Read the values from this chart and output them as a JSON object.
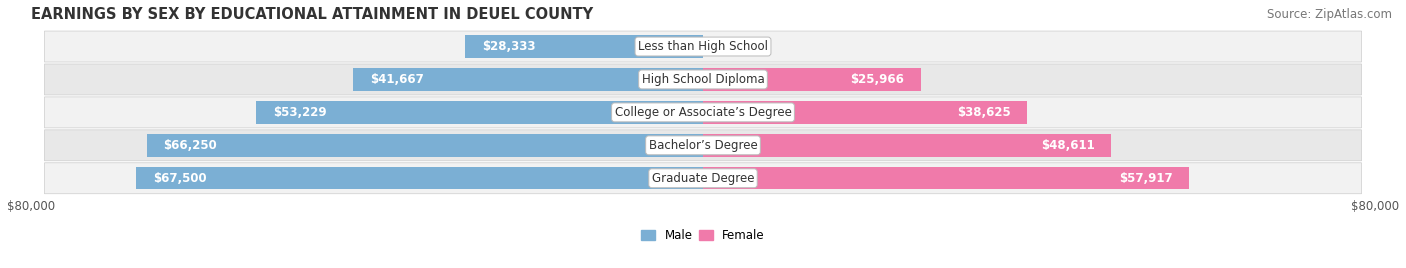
{
  "title": "EARNINGS BY SEX BY EDUCATIONAL ATTAINMENT IN DEUEL COUNTY",
  "source": "Source: ZipAtlas.com",
  "categories": [
    "Less than High School",
    "High School Diploma",
    "College or Associate’s Degree",
    "Bachelor’s Degree",
    "Graduate Degree"
  ],
  "male_values": [
    28333,
    41667,
    53229,
    66250,
    67500
  ],
  "female_values": [
    0,
    25966,
    38625,
    48611,
    57917
  ],
  "male_color": "#7bafd4",
  "female_color": "#f07aaa",
  "male_label": "Male",
  "female_label": "Female",
  "xlim": 80000,
  "bar_height": 0.68,
  "row_bg_even": "#f2f2f2",
  "row_bg_odd": "#e8e8e8",
  "title_fontsize": 10.5,
  "source_fontsize": 8.5,
  "label_fontsize": 8.5,
  "value_fontsize": 8.5,
  "tick_fontsize": 8.5,
  "figsize": [
    14.06,
    2.68
  ],
  "dpi": 100
}
